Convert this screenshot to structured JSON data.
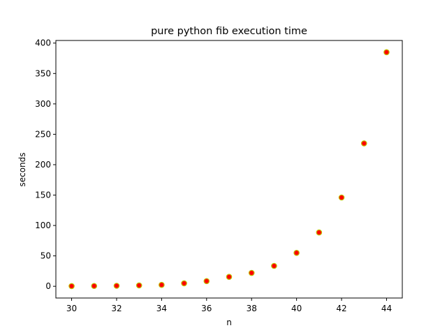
{
  "chart_data": {
    "type": "scatter",
    "title": "pure python fib execution time",
    "xlabel": "n",
    "ylabel": "seconds",
    "xlim": [
      29.3,
      44.7
    ],
    "ylim": [
      -19.3,
      404.3
    ],
    "xticks": [
      30,
      32,
      34,
      36,
      38,
      40,
      42,
      44
    ],
    "yticks": [
      0,
      50,
      100,
      150,
      200,
      250,
      300,
      350,
      400
    ],
    "grid": false,
    "marker": {
      "face_color": "#ff0000",
      "edge_color": "#bfbf00"
    },
    "series": [
      {
        "x": [
          30,
          31,
          32,
          33,
          34,
          35,
          36,
          37,
          38,
          39,
          40,
          41,
          42,
          43,
          44
        ],
        "y": [
          0.3,
          0.5,
          0.8,
          1.4,
          2.3,
          4.9,
          8.5,
          15.5,
          22.0,
          33.5,
          55.0,
          88.5,
          146.0,
          235.0,
          385.0
        ]
      }
    ]
  }
}
